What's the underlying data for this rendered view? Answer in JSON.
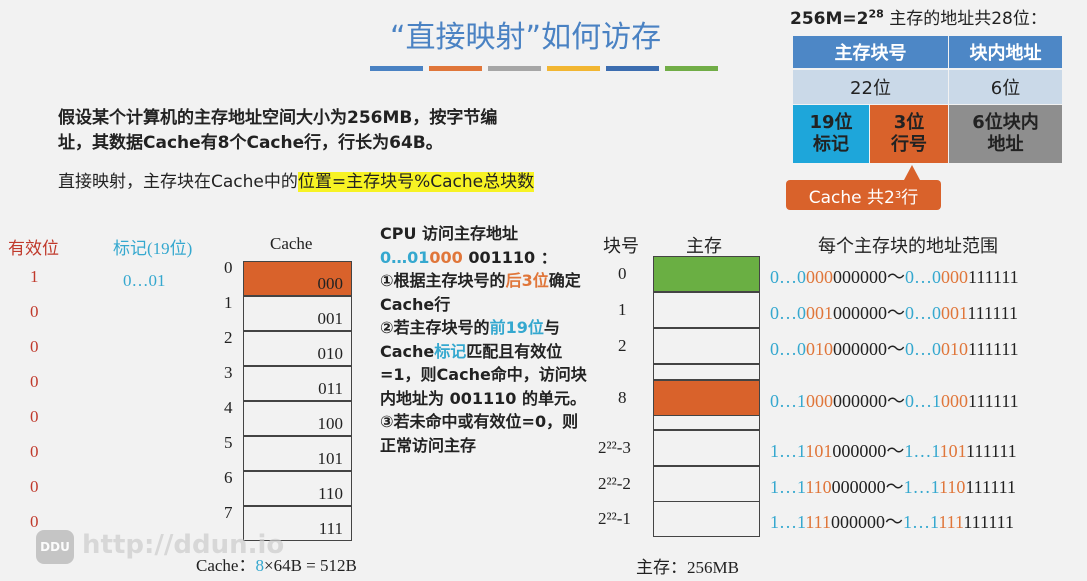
{
  "title": "“直接映射”如何访存",
  "title_bar_colors": [
    "#4a82c3",
    "#e0763a",
    "#a6a6a6",
    "#f2b632",
    "#3c6db0",
    "#71ad47"
  ],
  "intro": {
    "line1": "假设某个计算机的主存地址空间大小为256MB，按字节编",
    "line2": "址，其数据Cache有8个Cache行，行长为64B。",
    "line3_prefix": "直接映射，主存块在Cache中的",
    "line3_highlight": "位置=主存块号%Cache总块数"
  },
  "addr_info": {
    "header": "256M=2",
    "exp": "28",
    "rest": " 主存的地址共28位：",
    "col1": "主存块号",
    "col2": "块内地址",
    "bits1": "22位",
    "bits2": "6位",
    "tag": "19位\n标记",
    "line": "3位\n行号",
    "offset": "6位块内\n地址",
    "callout": "Cache 共2",
    "callout_exp": "3",
    "callout_end": " 行"
  },
  "colors": {
    "header": "#4d87c6",
    "light": "#cad9e8",
    "tag": "#1ea6da",
    "line": "#d9622b",
    "offset": "#8e8e8e",
    "hit_row": "#d9622b",
    "green": "#6aaf43"
  },
  "cache": {
    "valid_header": "有效位",
    "tag_header": "标记(19位)",
    "header": "Cache",
    "valid": [
      "1",
      "0",
      "0",
      "0",
      "0",
      "0",
      "0",
      "0"
    ],
    "tag0": "0…01",
    "rows": [
      "000",
      "001",
      "010",
      "011",
      "100",
      "101",
      "110",
      "111"
    ],
    "indices": [
      "0",
      "1",
      "2",
      "3",
      "4",
      "5",
      "6",
      "7"
    ],
    "footer_prefix": "Cache：",
    "footer_8": "8",
    "footer_rest": "×64B = 512B"
  },
  "steps": {
    "s0": "CPU 访问主存地址",
    "addr_blue": "0…01",
    "addr_orange": "000",
    "addr_black": " 001110 ：",
    "s1a": "①根据主存块号的",
    "s1b": "后3位",
    "s1c": "确定Cache行",
    "s2a": "②若主存块号的",
    "s2b": "前19位",
    "s2c": "与Cache",
    "s2d": "标记",
    "s2e": "匹配且有效位=1，则Cache命中，访问块内地址为 001110 的单元。",
    "s3": "③若未命中或有效位=0，则正常访问主存"
  },
  "memory": {
    "col_block": "块号",
    "col_mem": "主存",
    "col_range": "每个主存块的地址范围",
    "footer": "主存：256MB",
    "blocks": [
      {
        "no": "0",
        "color": "green",
        "from": [
          "0…0",
          "000",
          "000000"
        ],
        "to": [
          "0…0",
          "000",
          "111111"
        ]
      },
      {
        "no": "1",
        "from": [
          "0…0",
          "001",
          "000000"
        ],
        "to": [
          "0…0",
          "001",
          "111111"
        ]
      },
      {
        "no": "2",
        "from": [
          "0…0",
          "010",
          "000000"
        ],
        "to": [
          "0…0",
          "010",
          "111111"
        ]
      },
      {
        "no": "8",
        "color": "orange",
        "from": [
          "0…1",
          "000",
          "000000"
        ],
        "to": [
          "0…1",
          "000",
          "111111"
        ]
      },
      {
        "no": "2²²-3",
        "from": [
          "1…1",
          "101",
          "000000"
        ],
        "to": [
          "1…1",
          "101",
          "111111"
        ]
      },
      {
        "no": "2²²-2",
        "from": [
          "1…1",
          "110",
          "000000"
        ],
        "to": [
          "1…1",
          "110",
          "111111"
        ]
      },
      {
        "no": "2²²-1",
        "from": [
          "1…1",
          "111",
          "000000"
        ],
        "to": [
          "1…1",
          "111",
          "111111"
        ]
      }
    ]
  },
  "watermark": "http://ddun.io",
  "watermark_logo": "DDU"
}
